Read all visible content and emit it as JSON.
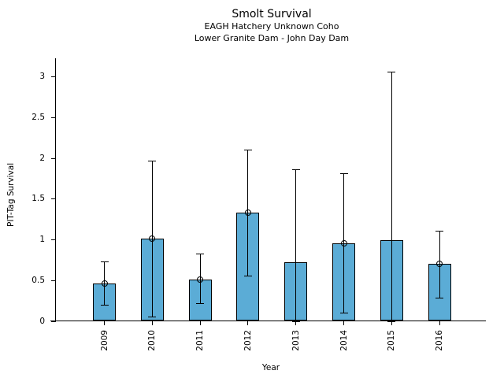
{
  "figure": {
    "background": "#ffffff"
  },
  "chart_data": {
    "type": "bar",
    "title": "Smolt Survival",
    "subtitle": [
      "EAGH Hatchery Unknown Coho",
      "Lower Granite Dam - John Day Dam"
    ],
    "xlabel": "Year",
    "ylabel": "PIT-Tag Survival",
    "categories": [
      "2009",
      "2010",
      "2011",
      "2012",
      "2013",
      "2014",
      "2015",
      "2016"
    ],
    "values": [
      0.46,
      1.01,
      0.51,
      1.33,
      0.72,
      0.95,
      0.99,
      0.7
    ],
    "error_low": [
      0.2,
      0.05,
      0.22,
      0.56,
      0.0,
      0.1,
      0.0,
      0.29
    ],
    "error_high": [
      0.73,
      1.97,
      0.83,
      2.1,
      1.86,
      1.81,
      3.06,
      1.11
    ],
    "point_markers": [
      true,
      true,
      true,
      true,
      false,
      true,
      false,
      true
    ],
    "yticks": [
      0,
      0.5,
      1,
      1.5,
      2,
      2.5,
      3
    ],
    "ytick_labels": [
      "0",
      "0.5",
      "1",
      "1.5",
      "2",
      "2.5",
      "3"
    ],
    "ylim": [
      0,
      3.23
    ],
    "grid": false,
    "legend": "none",
    "bar_color": "#5BACD6",
    "bar_edge_color": "#000000",
    "error_bar_color": "#000000",
    "text_color": "#000000"
  }
}
